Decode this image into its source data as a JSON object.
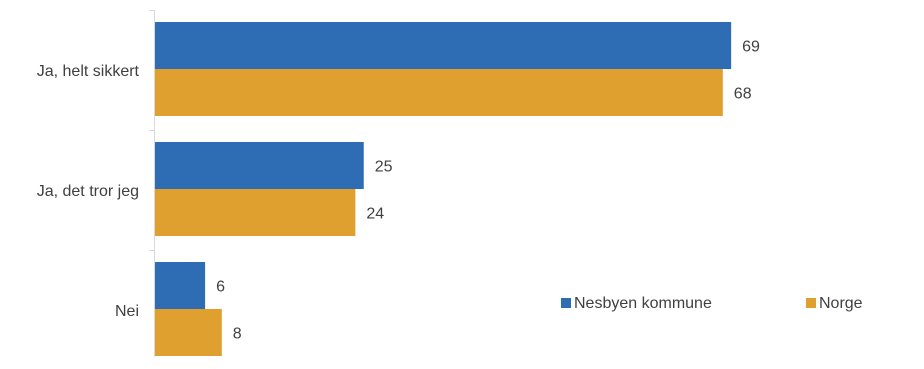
{
  "chart_data": {
    "type": "bar",
    "orientation": "horizontal",
    "title": "",
    "xlabel": "",
    "ylabel": "",
    "categories": [
      "Ja, helt sikkert",
      "Ja, det tror jeg",
      "Nei"
    ],
    "series": [
      {
        "name": "Nesbyen kommune",
        "color": "#2E6DB4",
        "values": [
          69,
          25,
          6
        ]
      },
      {
        "name": "Norge",
        "color": "#E0A030",
        "values": [
          68,
          24,
          8
        ]
      }
    ],
    "xlim": [
      0,
      80
    ],
    "grid": false,
    "legend_position": "bottom-right",
    "data_labels": true
  }
}
